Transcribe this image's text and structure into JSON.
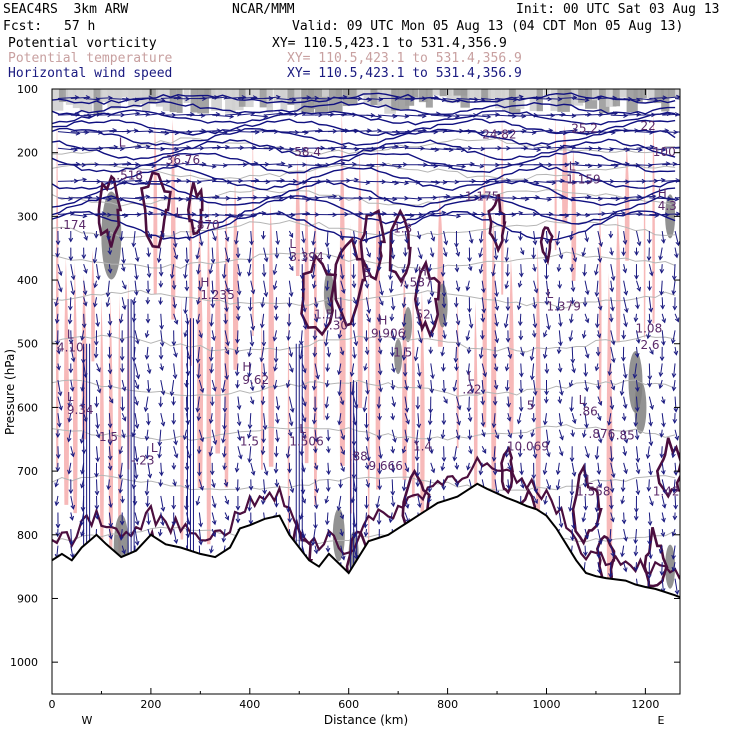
{
  "header": {
    "model": "SEAC4RS  3km ARW",
    "center": "NCAR/MMM",
    "init": "Init: 00 UTC Sat 03 Aug 13",
    "fcst_label": "Fcst:",
    "fcst_value": "57 h",
    "valid": "Valid: 09 UTC Mon 05 Aug 13 (04 CDT Mon 05 Aug 13)",
    "fields": [
      {
        "name": "Potential vorticity",
        "xy": "XY= 110.5,423.1 to 531.4,356.9",
        "color": "#4b0e5a"
      },
      {
        "name": "Potential temperature",
        "xy": "XY= 110.5,423.1 to 531.4,356.9",
        "color": "#c8a0a0"
      },
      {
        "name": "Horizontal wind speed",
        "xy": "XY= 110.5,423.1 to 531.4,356.9",
        "color": "#1a1a80"
      }
    ]
  },
  "chart_data": {
    "type": "cross-section",
    "xlabel": "Distance (km)",
    "ylabel": "Pressure (hPa)",
    "xlim": [
      0,
      1270
    ],
    "ylim": [
      100,
      1050
    ],
    "y_scale": "linear",
    "x_ticks": [
      0,
      200,
      400,
      600,
      800,
      1000,
      1200
    ],
    "y_ticks": [
      100,
      200,
      300,
      400,
      500,
      600,
      700,
      800,
      900,
      1000
    ],
    "end_labels": {
      "left": "W",
      "right": "E"
    },
    "terrain_surface": [
      [
        0,
        840
      ],
      [
        20,
        830
      ],
      [
        40,
        840
      ],
      [
        60,
        820
      ],
      [
        90,
        800
      ],
      [
        110,
        815
      ],
      [
        140,
        835
      ],
      [
        170,
        825
      ],
      [
        200,
        800
      ],
      [
        230,
        815
      ],
      [
        260,
        820
      ],
      [
        300,
        830
      ],
      [
        330,
        835
      ],
      [
        360,
        820
      ],
      [
        380,
        790
      ],
      [
        400,
        785
      ],
      [
        430,
        775
      ],
      [
        460,
        770
      ],
      [
        480,
        800
      ],
      [
        500,
        820
      ],
      [
        520,
        840
      ],
      [
        540,
        850
      ],
      [
        560,
        830
      ],
      [
        580,
        845
      ],
      [
        600,
        860
      ],
      [
        620,
        835
      ],
      [
        640,
        810
      ],
      [
        660,
        805
      ],
      [
        680,
        800
      ],
      [
        700,
        790
      ],
      [
        720,
        780
      ],
      [
        740,
        770
      ],
      [
        760,
        760
      ],
      [
        780,
        750
      ],
      [
        800,
        745
      ],
      [
        820,
        740
      ],
      [
        840,
        730
      ],
      [
        860,
        720
      ],
      [
        880,
        728
      ],
      [
        900,
        735
      ],
      [
        920,
        742
      ],
      [
        940,
        748
      ],
      [
        960,
        755
      ],
      [
        980,
        760
      ],
      [
        1000,
        770
      ],
      [
        1020,
        790
      ],
      [
        1040,
        815
      ],
      [
        1060,
        840
      ],
      [
        1080,
        860
      ],
      [
        1100,
        865
      ],
      [
        1120,
        868
      ],
      [
        1140,
        870
      ],
      [
        1160,
        872
      ],
      [
        1180,
        878
      ],
      [
        1200,
        882
      ],
      [
        1220,
        885
      ],
      [
        1240,
        890
      ],
      [
        1260,
        895
      ],
      [
        1270,
        898
      ]
    ],
    "annotations": [
      {
        "text": "L",
        "x": 135,
        "y": 190
      },
      {
        "text": "36.76",
        "x": 230,
        "y": 218
      },
      {
        "text": "58.4",
        "x": 490,
        "y": 205
      },
      {
        "text": ".518",
        "x": 130,
        "y": 242
      },
      {
        "text": "24.82",
        "x": 870,
        "y": 178
      },
      {
        "text": "25.2",
        "x": 1050,
        "y": 168
      },
      {
        "text": "22",
        "x": 1190,
        "y": 164
      },
      {
        "text": "100",
        "x": 1215,
        "y": 205
      },
      {
        "text": "L",
        "x": 1045,
        "y": 228
      },
      {
        "text": "1.159",
        "x": 1040,
        "y": 248
      },
      {
        "text": "1.175",
        "x": 835,
        "y": 275
      },
      {
        "text": "H",
        "x": 1225,
        "y": 270
      },
      {
        "text": "4.3",
        "x": 1225,
        "y": 290
      },
      {
        "text": ".174",
        "x": 15,
        "y": 320
      },
      {
        "text": "L",
        "x": 250,
        "y": 300
      },
      {
        "text": ".870",
        "x": 285,
        "y": 320
      },
      {
        "text": "1.3",
        "x": 690,
        "y": 325
      },
      {
        "text": "L",
        "x": 480,
        "y": 350
      },
      {
        "text": "3.394",
        "x": 480,
        "y": 370
      },
      {
        "text": "5",
        "x": 630,
        "y": 395
      },
      {
        "text": "H",
        "x": 740,
        "y": 393
      },
      {
        "text": "7.587",
        "x": 700,
        "y": 410
      },
      {
        "text": "H",
        "x": 300,
        "y": 410
      },
      {
        "text": "1.235",
        "x": 300,
        "y": 430
      },
      {
        "text": "L",
        "x": 1000,
        "y": 428
      },
      {
        "text": "1.379",
        "x": 1000,
        "y": 448
      },
      {
        "text": "1.5",
        "x": 530,
        "y": 460
      },
      {
        "text": "L",
        "x": 570,
        "y": 460
      },
      {
        "text": "52",
        "x": 735,
        "y": 460
      },
      {
        "text": ".30",
        "x": 560,
        "y": 478
      },
      {
        "text": "H",
        "x": 660,
        "y": 470
      },
      {
        "text": "9.906",
        "x": 645,
        "y": 490
      },
      {
        "text": "L",
        "x": 30,
        "y": 492
      },
      {
        "text": "4.10",
        "x": 10,
        "y": 512
      },
      {
        "text": "1.08",
        "x": 1180,
        "y": 482
      },
      {
        "text": "2.6",
        "x": 1190,
        "y": 508
      },
      {
        "text": "1.5",
        "x": 690,
        "y": 520
      },
      {
        "text": "H",
        "x": 385,
        "y": 543
      },
      {
        "text": "9.62",
        "x": 385,
        "y": 563
      },
      {
        "text": "L",
        "x": 840,
        "y": 558
      },
      {
        "text": ".22",
        "x": 830,
        "y": 578
      },
      {
        "text": "L",
        "x": 30,
        "y": 590
      },
      {
        "text": "9.34",
        "x": 30,
        "y": 610
      },
      {
        "text": "5",
        "x": 960,
        "y": 603
      },
      {
        "text": "L",
        "x": 1065,
        "y": 595
      },
      {
        "text": ".86",
        "x": 1065,
        "y": 613
      },
      {
        "text": "1.5",
        "x": 95,
        "y": 653
      },
      {
        "text": "L",
        "x": 500,
        "y": 640
      },
      {
        "text": "1.5",
        "x": 380,
        "y": 660
      },
      {
        "text": "1.506",
        "x": 480,
        "y": 660
      },
      {
        "text": "1.4",
        "x": 730,
        "y": 668
      },
      {
        "text": "10.069",
        "x": 920,
        "y": 668
      },
      {
        "text": ".876",
        "x": 1085,
        "y": 648
      },
      {
        "text": ".85",
        "x": 1140,
        "y": 650
      },
      {
        "text": "L",
        "x": 200,
        "y": 670
      },
      {
        "text": "-.23",
        "x": 160,
        "y": 690
      },
      {
        "text": ".88",
        "x": 600,
        "y": 683
      },
      {
        "text": "9.666",
        "x": 640,
        "y": 698
      },
      {
        "text": "L",
        "x": 1080,
        "y": 720
      },
      {
        "text": "1.558",
        "x": 1060,
        "y": 738
      },
      {
        "text": "1.42",
        "x": 1215,
        "y": 738
      }
    ]
  }
}
